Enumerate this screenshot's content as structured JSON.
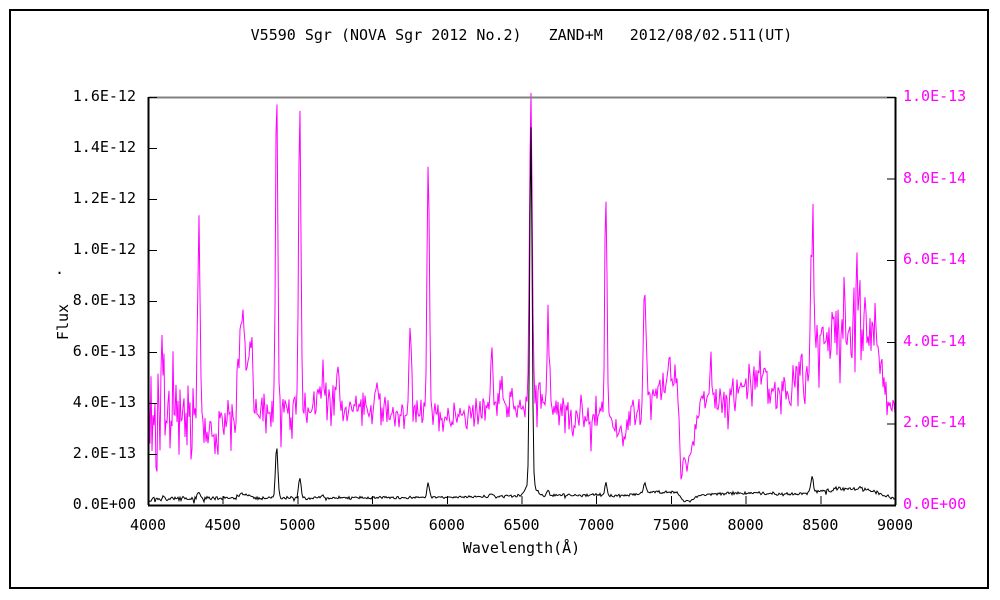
{
  "title": {
    "parts": [
      "V5590 Sgr (NOVA Sgr 2012 No.2)",
      "ZAND+M",
      "2012/08/02.511(UT)"
    ]
  },
  "chart_data": {
    "type": "line",
    "title": "V5590 Sgr (NOVA Sgr 2012 No.2)  ZAND+M  2012/08/02.511(UT)",
    "xlabel": "Wavelength(Å)",
    "x_range": [
      4000,
      9000
    ],
    "x_ticks": [
      4000,
      4500,
      5000,
      5500,
      6000,
      6500,
      7000,
      7500,
      8000,
      8500,
      9000
    ],
    "x_tick_labels": [
      "4000",
      "4500",
      "5000",
      "5500",
      "6000",
      "6500",
      "7000",
      "7500",
      "8000",
      "8500",
      "9000"
    ],
    "grid": false,
    "legend": "none",
    "frame": {
      "top_border_color": "#808080",
      "border_color": "#000000"
    },
    "left_axis": {
      "label": "Flux",
      "label_dot": ".",
      "color": "#000000",
      "range": [
        0,
        1.6e-12
      ],
      "tick_values": [
        0,
        2e-13,
        4e-13,
        6e-13,
        8e-13,
        1e-12,
        1.2e-12,
        1.4e-12,
        1.6e-12
      ],
      "tick_labels": [
        "0.0E+00",
        "2.0E-13",
        "4.0E-13",
        "6.0E-13",
        "8.0E-13",
        "1.0E-12",
        "1.2E-12",
        "1.4E-12",
        "1.6E-12"
      ],
      "unit": 1e-13,
      "max_units": 16
    },
    "right_axis": {
      "label": "",
      "color": "#ff00ff",
      "range": [
        0,
        1e-13
      ],
      "tick_values": [
        0,
        2e-14,
        4e-14,
        6e-14,
        8e-14,
        1e-13
      ],
      "tick_labels": [
        "0.0E+00",
        "2.0E-14",
        "4.0E-14",
        "6.0E-14",
        "8.0E-14",
        "1.0E-13"
      ],
      "unit": 1e-14,
      "max_units": 10
    },
    "series": [
      {
        "name": "spectrum-magenta-right-scale",
        "axis": "right",
        "color": "#ff00ff",
        "z": 0,
        "seed": 20120802,
        "spike_prob": 0.05,
        "floor": 0.06,
        "ceiling": 10.1,
        "continuum": [
          [
            4000,
            2.4,
            1.5
          ],
          [
            4150,
            2.3,
            1.5
          ],
          [
            4300,
            2.1,
            1.1
          ],
          [
            4420,
            1.9,
            0.6
          ],
          [
            4560,
            2.1,
            0.55
          ],
          [
            4750,
            2.2,
            0.5
          ],
          [
            5000,
            2.35,
            0.45
          ],
          [
            5250,
            2.45,
            0.5
          ],
          [
            5500,
            2.4,
            0.45
          ],
          [
            5700,
            2.25,
            0.4
          ],
          [
            6000,
            2.15,
            0.4
          ],
          [
            6250,
            2.2,
            0.4
          ],
          [
            6480,
            2.5,
            0.4
          ],
          [
            6620,
            2.6,
            0.45
          ],
          [
            6800,
            2.35,
            0.45
          ],
          [
            6840,
            1.9,
            0.35
          ],
          [
            6890,
            2.3,
            0.4
          ],
          [
            7080,
            2.25,
            0.45
          ],
          [
            7170,
            1.7,
            0.35
          ],
          [
            7240,
            2.25,
            0.4
          ],
          [
            7390,
            2.6,
            0.45
          ],
          [
            7480,
            3.2,
            0.45
          ],
          [
            7545,
            3.0,
            0.4
          ],
          [
            7565,
            1.1,
            0.25
          ],
          [
            7610,
            1.0,
            0.25
          ],
          [
            7650,
            1.6,
            0.3
          ],
          [
            7700,
            2.5,
            0.4
          ],
          [
            7800,
            2.6,
            0.45
          ],
          [
            7950,
            2.7,
            0.5
          ],
          [
            8060,
            3.3,
            0.55
          ],
          [
            8110,
            3.4,
            0.5
          ],
          [
            8160,
            2.9,
            0.5
          ],
          [
            8210,
            2.7,
            0.5
          ],
          [
            8360,
            3.0,
            0.6
          ],
          [
            8480,
            3.7,
            0.9
          ],
          [
            8600,
            3.9,
            0.95
          ],
          [
            8720,
            4.3,
            1.0
          ],
          [
            8820,
            4.2,
            0.95
          ],
          [
            8900,
            3.8,
            0.9
          ],
          [
            8950,
            2.6,
            0.7
          ],
          [
            9000,
            1.9,
            0.6
          ]
        ],
        "lines": [
          [
            4101,
            2.0,
            8
          ],
          [
            4340,
            4.9,
            8
          ],
          [
            4630,
            2.6,
            20
          ],
          [
            4686,
            2.2,
            13
          ],
          [
            4861,
            7.8,
            8
          ],
          [
            5016,
            7.4,
            8
          ],
          [
            5169,
            1.0,
            8
          ],
          [
            5270,
            1.1,
            9
          ],
          [
            5535,
            0.8,
            8
          ],
          [
            5755,
            2.2,
            8
          ],
          [
            5876,
            6.4,
            8
          ],
          [
            6300,
            1.4,
            8
          ],
          [
            6364,
            0.7,
            8
          ],
          [
            6563,
            7.7,
            9
          ],
          [
            6678,
            2.0,
            8
          ],
          [
            7065,
            5.4,
            8
          ],
          [
            7325,
            3.1,
            9
          ],
          [
            7772,
            0.8,
            9
          ],
          [
            8446,
            4.6,
            8
          ],
          [
            8498,
            0.9,
            11
          ],
          [
            8542,
            1.1,
            11
          ],
          [
            8598,
            0.8,
            11
          ],
          [
            8662,
            1.1,
            11
          ],
          [
            8750,
            1.4,
            13
          ],
          [
            8806,
            0.9,
            11
          ],
          [
            8863,
            0.9,
            11
          ]
        ]
      },
      {
        "name": "spectrum-black-left-scale",
        "axis": "left",
        "color": "#000000",
        "z": 1,
        "seed": 5590,
        "spike_prob": 0.02,
        "floor": 0.03,
        "ceiling": 16,
        "continuum": [
          [
            4000,
            0.22,
            0.1
          ],
          [
            4300,
            0.26,
            0.08
          ],
          [
            4700,
            0.27,
            0.07
          ],
          [
            5300,
            0.28,
            0.06
          ],
          [
            6000,
            0.3,
            0.05
          ],
          [
            6600,
            0.36,
            0.06
          ],
          [
            7000,
            0.4,
            0.06
          ],
          [
            7150,
            0.35,
            0.06
          ],
          [
            7400,
            0.52,
            0.06
          ],
          [
            7540,
            0.5,
            0.05
          ],
          [
            7580,
            0.16,
            0.04
          ],
          [
            7630,
            0.15,
            0.04
          ],
          [
            7690,
            0.4,
            0.05
          ],
          [
            7900,
            0.47,
            0.06
          ],
          [
            8150,
            0.46,
            0.06
          ],
          [
            8300,
            0.42,
            0.06
          ],
          [
            8420,
            0.48,
            0.07
          ],
          [
            8550,
            0.58,
            0.1
          ],
          [
            8700,
            0.65,
            0.12
          ],
          [
            8800,
            0.62,
            0.11
          ],
          [
            8880,
            0.5,
            0.1
          ],
          [
            8940,
            0.35,
            0.08
          ],
          [
            9000,
            0.24,
            0.06
          ]
        ],
        "lines": [
          [
            4101,
            0.1,
            8
          ],
          [
            4340,
            0.28,
            8
          ],
          [
            4630,
            0.2,
            20
          ],
          [
            4686,
            0.12,
            12
          ],
          [
            4861,
            2.05,
            8
          ],
          [
            5016,
            0.8,
            8
          ],
          [
            5169,
            0.08,
            8
          ],
          [
            5876,
            0.55,
            8
          ],
          [
            6300,
            0.12,
            8
          ],
          [
            6563,
            13.9,
            8
          ],
          [
            6563,
            0.55,
            30
          ],
          [
            6678,
            0.22,
            8
          ],
          [
            7065,
            0.5,
            8
          ],
          [
            7325,
            0.4,
            8
          ],
          [
            8446,
            0.62,
            8
          ]
        ]
      }
    ]
  }
}
